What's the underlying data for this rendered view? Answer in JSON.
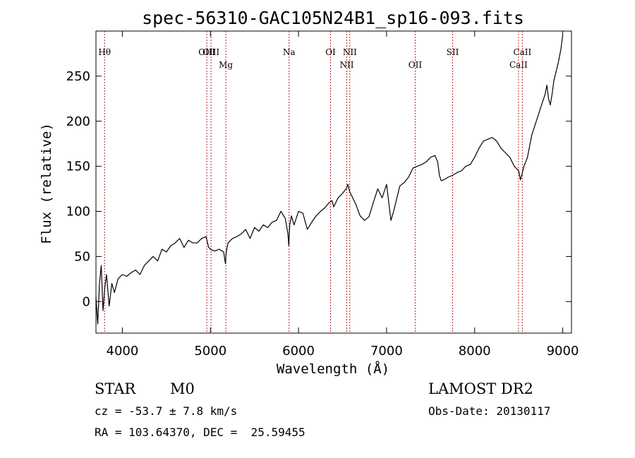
{
  "chart_data": {
    "type": "line",
    "title": "spec-56310-GAC105N24B1_sp16-093.fits",
    "xlabel": "Wavelength (Å)",
    "ylabel": "Flux (relative)",
    "xlim": [
      3700,
      9100
    ],
    "ylim": [
      -35,
      300
    ],
    "xticks": [
      4000,
      5000,
      6000,
      7000,
      8000,
      9000
    ],
    "yticks": [
      0,
      50,
      100,
      150,
      200,
      250
    ],
    "grid": false,
    "line_color": "#000000",
    "marker_color": "#b22222",
    "lines": [
      {
        "label": "Hθ",
        "wavelength": 3798,
        "row": "top"
      },
      {
        "label": "OIII",
        "wavelength": 4959,
        "row": "top"
      },
      {
        "label": "OIII",
        "wavelength": 5007,
        "row": "top"
      },
      {
        "label": "Mg",
        "wavelength": 5175,
        "row": "bottom"
      },
      {
        "label": "Na",
        "wavelength": 5893,
        "row": "top"
      },
      {
        "label": "OI",
        "wavelength": 6364,
        "row": "top"
      },
      {
        "label": "NII",
        "wavelength": 6548,
        "row": "bottom"
      },
      {
        "label": "NII",
        "wavelength": 6583,
        "row": "top"
      },
      {
        "label": "OII",
        "wavelength": 7325,
        "row": "bottom"
      },
      {
        "label": "SII",
        "wavelength": 7750,
        "row": "top"
      },
      {
        "label": "CaII",
        "wavelength": 8498,
        "row": "bottom"
      },
      {
        "label": "CaII",
        "wavelength": 8542,
        "row": "top"
      }
    ],
    "series": [
      {
        "x": [
          3700,
          3720,
          3740,
          3760,
          3780,
          3800,
          3820,
          3850,
          3880,
          3910,
          3950,
          4000,
          4050,
          4100,
          4150,
          4200,
          4250,
          4300,
          4350,
          4400,
          4450,
          4500,
          4550,
          4600,
          4650,
          4700,
          4750,
          4800,
          4850,
          4900,
          4950,
          4980,
          5000,
          5020,
          5050,
          5100,
          5150,
          5170,
          5180,
          5200,
          5250,
          5300,
          5350,
          5400,
          5450,
          5500,
          5550,
          5600,
          5650,
          5700,
          5750,
          5800,
          5850,
          5880,
          5890,
          5900,
          5920,
          5950,
          6000,
          6050,
          6100,
          6150,
          6200,
          6250,
          6300,
          6350,
          6380,
          6400,
          6450,
          6500,
          6540,
          6560,
          6580,
          6600,
          6650,
          6700,
          6750,
          6800,
          6850,
          6900,
          6950,
          7000,
          7050,
          7080,
          7100,
          7130,
          7150,
          7200,
          7250,
          7300,
          7350,
          7400,
          7450,
          7500,
          7550,
          7580,
          7600,
          7620,
          7650,
          7700,
          7750,
          7800,
          7850,
          7900,
          7950,
          8000,
          8050,
          8100,
          8150,
          8200,
          8250,
          8300,
          8350,
          8400,
          8450,
          8500,
          8520,
          8540,
          8560,
          8580,
          8600,
          8650,
          8700,
          8750,
          8800,
          8820,
          8840,
          8860,
          8880,
          8900,
          8950,
          8980,
          9000
        ],
        "y": [
          5,
          -25,
          20,
          40,
          -10,
          15,
          30,
          -5,
          20,
          10,
          25,
          30,
          28,
          32,
          35,
          30,
          40,
          45,
          50,
          45,
          58,
          55,
          62,
          65,
          70,
          60,
          68,
          65,
          65,
          70,
          72,
          60,
          58,
          57,
          56,
          58,
          55,
          42,
          55,
          65,
          70,
          72,
          75,
          80,
          70,
          82,
          78,
          85,
          82,
          88,
          90,
          100,
          92,
          75,
          62,
          85,
          95,
          85,
          100,
          98,
          80,
          88,
          95,
          100,
          104,
          110,
          112,
          105,
          115,
          120,
          125,
          130,
          122,
          118,
          108,
          95,
          90,
          94,
          110,
          125,
          115,
          130,
          90,
          100,
          108,
          120,
          128,
          132,
          138,
          148,
          150,
          152,
          155,
          160,
          162,
          155,
          140,
          134,
          135,
          138,
          140,
          143,
          145,
          150,
          152,
          160,
          170,
          178,
          180,
          182,
          178,
          170,
          165,
          160,
          150,
          145,
          135,
          142,
          150,
          155,
          160,
          185,
          200,
          215,
          230,
          240,
          225,
          218,
          230,
          245,
          265,
          280,
          295
        ]
      }
    ],
    "info": {
      "object_class": "STAR",
      "subclass": "M0",
      "survey": "LAMOST DR2",
      "cz": "cz = -53.7 ± 7.8 km/s",
      "obs_date": "Obs-Date: 20130117",
      "radec": "RA = 103.64370, DEC =  25.59455"
    }
  }
}
